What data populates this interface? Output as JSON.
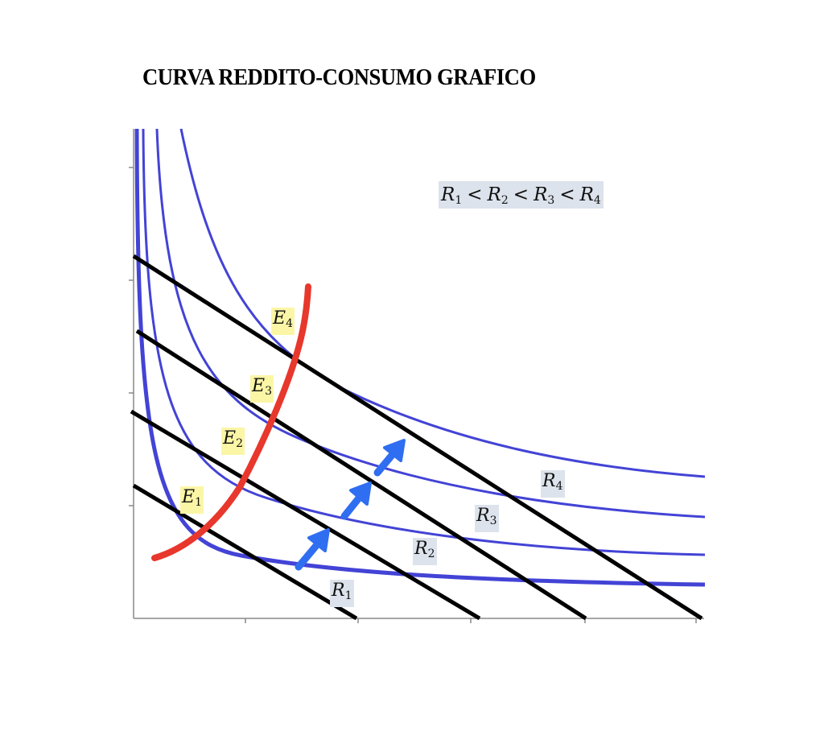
{
  "title": "CURVA REDDITO-CONSUMO GRAFICO",
  "legend": {
    "terms": [
      {
        "letter": "R",
        "sub": "1"
      },
      {
        "letter": "R",
        "sub": "2"
      },
      {
        "letter": "R",
        "sub": "3"
      },
      {
        "letter": "R",
        "sub": "4"
      }
    ],
    "operator": "<"
  },
  "equilibrium_labels": [
    {
      "letter": "E",
      "sub": "1"
    },
    {
      "letter": "E",
      "sub": "2"
    },
    {
      "letter": "E",
      "sub": "3"
    },
    {
      "letter": "E",
      "sub": "4"
    }
  ],
  "budget_labels": [
    {
      "letter": "R",
      "sub": "1"
    },
    {
      "letter": "R",
      "sub": "2"
    },
    {
      "letter": "R",
      "sub": "3"
    },
    {
      "letter": "R",
      "sub": "4"
    }
  ],
  "colors": {
    "indifference_curves": "#4343d6",
    "budget_lines": "#000000",
    "income_consumption_curve": "#e8372c",
    "arrows": "#2f6ef0",
    "equilibrium_label_bg": "#fbf6a6",
    "budget_label_bg": "#dde3ec"
  }
}
